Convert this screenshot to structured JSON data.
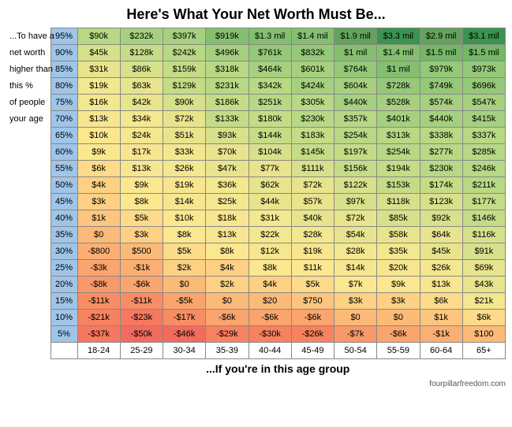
{
  "title": "Here's What Your Net Worth Must Be...",
  "row_lead_lines": [
    "...To have a",
    "net worth",
    "higher than",
    "this %",
    "of people",
    "your age",
    "",
    "",
    "",
    "",
    "",
    "",
    "",
    "",
    "",
    "",
    "",
    "",
    "",
    ""
  ],
  "subtitle": "...If you're in this age group",
  "attribution": "fourpillarfreedom.com",
  "percentiles": [
    "95%",
    "90%",
    "85%",
    "80%",
    "75%",
    "70%",
    "65%",
    "60%",
    "55%",
    "50%",
    "45%",
    "40%",
    "35%",
    "30%",
    "25%",
    "20%",
    "15%",
    "10%",
    "5%"
  ],
  "age_groups": [
    "18-24",
    "25-29",
    "30-34",
    "35-39",
    "40-44",
    "45-49",
    "50-54",
    "55-59",
    "60-64",
    "65+"
  ],
  "cells": [
    [
      "$90k",
      "$232k",
      "$397k",
      "$919k",
      "$1.3 mil",
      "$1.4 mil",
      "$1.9 mil",
      "$3.3 mil",
      "$2.9 mil",
      "$3.1 mil"
    ],
    [
      "$45k",
      "$128k",
      "$242k",
      "$496k",
      "$761k",
      "$832k",
      "$1 mil",
      "$1.4 mil",
      "$1.5 mil",
      "$1.5 mil"
    ],
    [
      "$31k",
      "$86k",
      "$159k",
      "$318k",
      "$464k",
      "$601k",
      "$764k",
      "$1 mil",
      "$979k",
      "$973k"
    ],
    [
      "$19k",
      "$63k",
      "$129k",
      "$231k",
      "$342k",
      "$424k",
      "$604k",
      "$728k",
      "$749k",
      "$696k"
    ],
    [
      "$16k",
      "$42k",
      "$90k",
      "$186k",
      "$251k",
      "$305k",
      "$440k",
      "$528k",
      "$574k",
      "$547k"
    ],
    [
      "$13k",
      "$34k",
      "$72k",
      "$133k",
      "$180k",
      "$230k",
      "$357k",
      "$401k",
      "$440k",
      "$415k"
    ],
    [
      "$10k",
      "$24k",
      "$51k",
      "$93k",
      "$144k",
      "$183k",
      "$254k",
      "$313k",
      "$338k",
      "$337k"
    ],
    [
      "$9k",
      "$17k",
      "$33k",
      "$70k",
      "$104k",
      "$145k",
      "$197k",
      "$254k",
      "$277k",
      "$285k"
    ],
    [
      "$6k",
      "$13k",
      "$26k",
      "$47k",
      "$77k",
      "$111k",
      "$156k",
      "$194k",
      "$230k",
      "$246k"
    ],
    [
      "$4k",
      "$9k",
      "$19k",
      "$36k",
      "$62k",
      "$72k",
      "$122k",
      "$153k",
      "$174k",
      "$211k"
    ],
    [
      "$3k",
      "$8k",
      "$14k",
      "$25k",
      "$44k",
      "$57k",
      "$97k",
      "$118k",
      "$123k",
      "$177k"
    ],
    [
      "$1k",
      "$5k",
      "$10k",
      "$18k",
      "$31k",
      "$40k",
      "$72k",
      "$85k",
      "$92k",
      "$146k"
    ],
    [
      "$0",
      "$3k",
      "$8k",
      "$13k",
      "$22k",
      "$28k",
      "$54k",
      "$58k",
      "$64k",
      "$116k"
    ],
    [
      "-$800",
      "$500",
      "$5k",
      "$8k",
      "$12k",
      "$19k",
      "$28k",
      "$35k",
      "$45k",
      "$91k"
    ],
    [
      "-$3k",
      "-$1k",
      "$2k",
      "$4k",
      "$8k",
      "$11k",
      "$14k",
      "$20k",
      "$26k",
      "$69k"
    ],
    [
      "-$8k",
      "-$6k",
      "$0",
      "$2k",
      "$4k",
      "$5k",
      "$7k",
      "$9k",
      "$13k",
      "$43k"
    ],
    [
      "-$11k",
      "-$11k",
      "-$5k",
      "$0",
      "$20",
      "$750",
      "$3k",
      "$3k",
      "$6k",
      "$21k"
    ],
    [
      "-$21k",
      "-$23k",
      "-$17k",
      "-$6k",
      "-$6k",
      "-$6k",
      "$0",
      "$0",
      "$1k",
      "$6k"
    ],
    [
      "-$37k",
      "-$50k",
      "-$46k",
      "-$29k",
      "-$30k",
      "-$26k",
      "-$7k",
      "-$6k",
      "-$1k",
      "$100"
    ]
  ],
  "colors": [
    [
      "#b7d884",
      "#a6d07f",
      "#a6d07f",
      "#84bf6f",
      "#84bf6f",
      "#84bf6f",
      "#63a35b",
      "#3b9350",
      "#63a35b",
      "#3b9350"
    ],
    [
      "#d7e08b",
      "#c5dc86",
      "#b7d884",
      "#a6d07f",
      "#95c878",
      "#95c878",
      "#84bf6f",
      "#84bf6f",
      "#74b766",
      "#74b766"
    ],
    [
      "#e8e48d",
      "#d7e08b",
      "#c5dc86",
      "#b7d884",
      "#a6d07f",
      "#a6d07f",
      "#95c878",
      "#84bf6f",
      "#95c878",
      "#95c878"
    ],
    [
      "#f3e78f",
      "#e8e48d",
      "#c5dc86",
      "#b7d884",
      "#b7d884",
      "#a6d07f",
      "#a6d07f",
      "#95c878",
      "#95c878",
      "#95c878"
    ],
    [
      "#f3e78f",
      "#e8e48d",
      "#d7e08b",
      "#c5dc86",
      "#b7d884",
      "#b7d884",
      "#a6d07f",
      "#a6d07f",
      "#a6d07f",
      "#a6d07f"
    ],
    [
      "#f7e68f",
      "#f3e78f",
      "#e8e48d",
      "#c5dc86",
      "#c5dc86",
      "#b7d884",
      "#b7d884",
      "#a6d07f",
      "#a6d07f",
      "#a6d07f"
    ],
    [
      "#fbe78f",
      "#f3e78f",
      "#e8e48d",
      "#d7e08b",
      "#c5dc86",
      "#c5dc86",
      "#b7d884",
      "#b7d884",
      "#b7d884",
      "#b7d884"
    ],
    [
      "#fbe78f",
      "#f7e68f",
      "#f3e78f",
      "#e8e48d",
      "#d7e08b",
      "#c5dc86",
      "#c5dc86",
      "#b7d884",
      "#b7d884",
      "#b7d884"
    ],
    [
      "#fddb8a",
      "#f7e68f",
      "#f3e78f",
      "#e8e48d",
      "#e8e48d",
      "#d7e08b",
      "#c5dc86",
      "#c5dc86",
      "#b7d884",
      "#b7d884"
    ],
    [
      "#fdd084",
      "#fbe78f",
      "#f7e68f",
      "#f3e78f",
      "#e8e48d",
      "#e8e48d",
      "#d7e08b",
      "#c5dc86",
      "#c5dc86",
      "#b7d884"
    ],
    [
      "#fdd084",
      "#fbe78f",
      "#f7e68f",
      "#f3e78f",
      "#e8e48d",
      "#e8e48d",
      "#d7e08b",
      "#d7e08b",
      "#d7e08b",
      "#c5dc86"
    ],
    [
      "#fdc57e",
      "#fddb8a",
      "#fbe78f",
      "#f7e68f",
      "#f3e78f",
      "#e8e48d",
      "#e8e48d",
      "#d7e08b",
      "#d7e08b",
      "#c5dc86"
    ],
    [
      "#fcba78",
      "#fdd084",
      "#fbe78f",
      "#f7e68f",
      "#f3e78f",
      "#f3e78f",
      "#e8e48d",
      "#e8e48d",
      "#e8e48d",
      "#d7e08b"
    ],
    [
      "#fbaf73",
      "#fcba78",
      "#fddb8a",
      "#fbe78f",
      "#f7e68f",
      "#f7e68f",
      "#f3e78f",
      "#f3e78f",
      "#e8e48d",
      "#d7e08b"
    ],
    [
      "#faa46e",
      "#fbaf73",
      "#fdd084",
      "#fdd084",
      "#fbe78f",
      "#fbe78f",
      "#f7e68f",
      "#f7e68f",
      "#f3e78f",
      "#e8e48d"
    ],
    [
      "#f99869",
      "#faa46e",
      "#fcba78",
      "#fdd084",
      "#fdd084",
      "#fddb8a",
      "#fbe78f",
      "#fbe78f",
      "#f7e68f",
      "#e8e48d"
    ],
    [
      "#f88d64",
      "#f88d64",
      "#faa46e",
      "#fcba78",
      "#fcba78",
      "#fdc57e",
      "#fdd084",
      "#fdd084",
      "#fddb8a",
      "#f3e78f"
    ],
    [
      "#f7825f",
      "#f67860",
      "#f88d64",
      "#faa46e",
      "#faa46e",
      "#faa46e",
      "#fcba78",
      "#fcba78",
      "#fdc57e",
      "#fddb8a"
    ],
    [
      "#f67860",
      "#f36b5c",
      "#f36b5c",
      "#f7825f",
      "#f7825f",
      "#f7825f",
      "#f99869",
      "#faa46e",
      "#fbaf73",
      "#fcba78"
    ]
  ],
  "pct_bg": "#9fc5e8"
}
